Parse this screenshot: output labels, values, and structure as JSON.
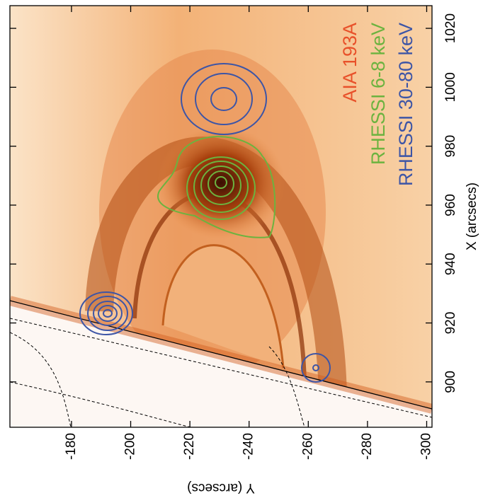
{
  "chart_data": {
    "type": "image",
    "xlabel": "Y (arcsecs)",
    "ylabel": "X (arcsecs)",
    "xlim": [
      -159.2,
      -301.8
    ],
    "xticks": [
      -180,
      -200,
      -220,
      -240,
      -260,
      -280,
      -300
    ],
    "ylim": [
      884.6,
      1027.7
    ],
    "yticks": [
      900,
      920,
      940,
      960,
      980,
      1000,
      1020
    ],
    "series": [
      {
        "name": "AIA 193A",
        "color": "#e8512a"
      },
      {
        "name": "RHESSI 6-8 keV",
        "color": "#6cb33f"
      },
      {
        "name": "RHESSI 30-80 keV",
        "color": "#3d55a6"
      }
    ],
    "legend": "top-right"
  }
}
